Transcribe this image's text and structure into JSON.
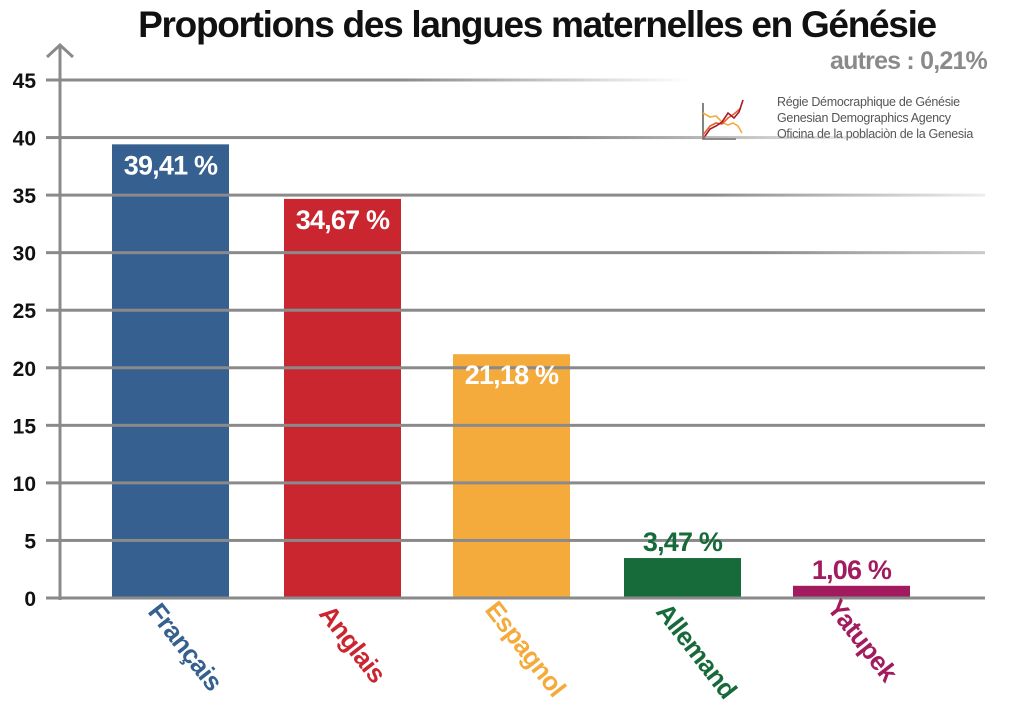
{
  "chart_data": {
    "type": "bar",
    "title": "Proportions  des langues maternelles en Génésie",
    "subtitle": "autres : 0,21%",
    "xlabel": "",
    "ylabel": "",
    "ylim": [
      0,
      45
    ],
    "yticks": [
      0,
      5,
      10,
      15,
      20,
      25,
      30,
      35,
      40,
      45
    ],
    "grid": true,
    "categories": [
      "Français",
      "Anglais",
      "Espagnol",
      "Allemand",
      "Yatupek"
    ],
    "values": [
      39.41,
      34.67,
      21.18,
      3.47,
      1.06
    ],
    "data_labels": [
      "39,41 %",
      "34,67 %",
      "21,18 %",
      "3,47 %",
      "1,06 %"
    ],
    "colors": [
      "#35608f",
      "#c9262f",
      "#f5ab3c",
      "#176a3a",
      "#a21b5e"
    ],
    "label_colors": [
      "#ffffff",
      "#ffffff",
      "#ffffff",
      "#176a3a",
      "#a21b5e"
    ],
    "annotations": [
      "autres : 0,21%"
    ]
  },
  "agency": {
    "lines": [
      "Régie Démocraphique de Génésie",
      "Genesian Demographics Agency",
      "Oficina de la poblaciòn de la Genesia"
    ],
    "logo_colors": [
      "#a7192c",
      "#e8602c",
      "#f5ab3c"
    ]
  }
}
